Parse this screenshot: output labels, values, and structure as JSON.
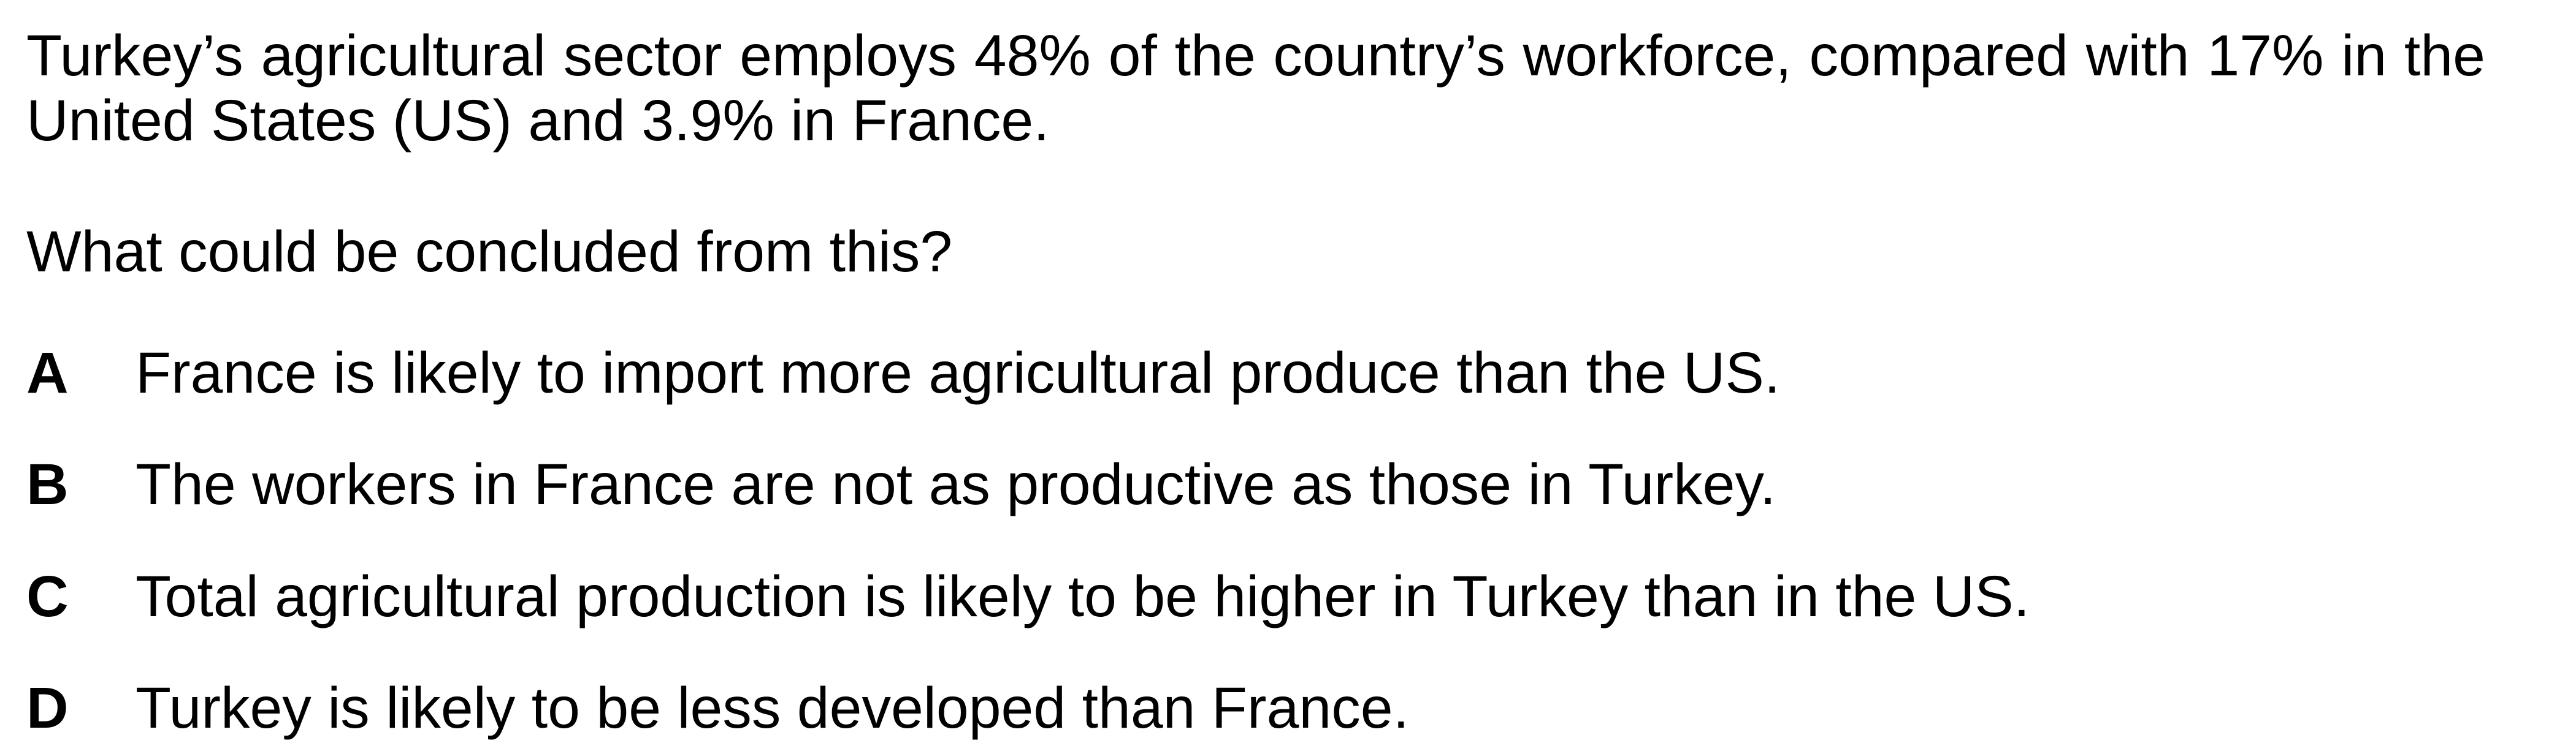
{
  "question": {
    "stem": "Turkey’s agricultural sector employs 48% of the country’s workforce, compared with 17% in the United States (US) and 3.9% in France.",
    "prompt": "What could be concluded from this?",
    "options": [
      {
        "letter": "A",
        "text": "France is likely to import more agricultural produce than the US."
      },
      {
        "letter": "B",
        "text": "The workers in France are not as productive as those in Turkey."
      },
      {
        "letter": "C",
        "text": "Total agricultural production is likely to be higher in Turkey than in the US."
      },
      {
        "letter": "D",
        "text": "Turkey is likely to be less developed than France."
      }
    ]
  }
}
